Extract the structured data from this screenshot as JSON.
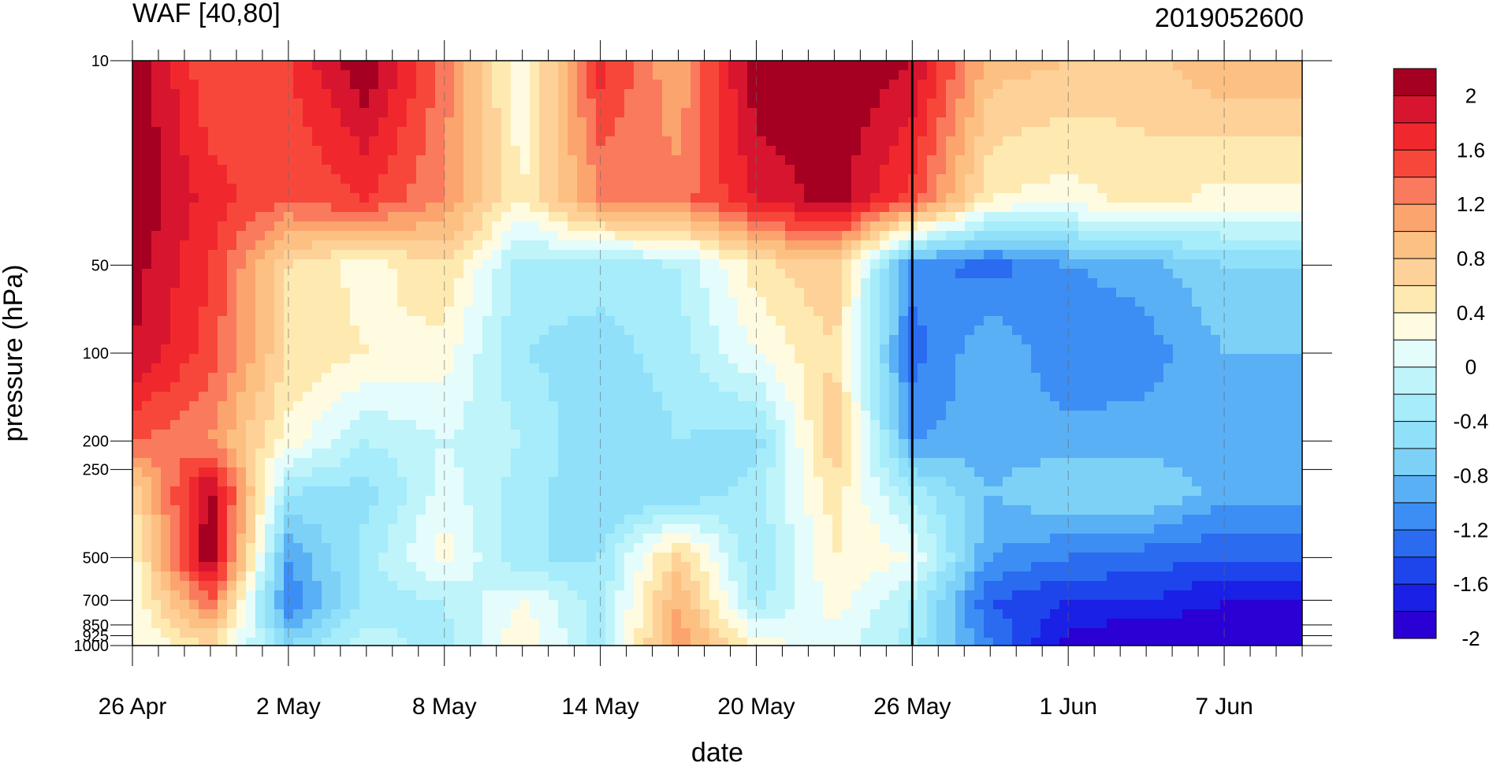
{
  "chart_data": {
    "type": "heatmap",
    "title_left": "WAF [40,80]",
    "title_right": "2019052600",
    "xlabel": "date",
    "ylabel": "pressure (hPa)",
    "x_ticks": [
      "26 Apr",
      "2 May",
      "8 May",
      "14 May",
      "20 May",
      "26 May",
      "1 Jun",
      "7 Jun"
    ],
    "x_dates": [
      "2019-04-26",
      "2019-05-02",
      "2019-05-08",
      "2019-05-14",
      "2019-05-20",
      "2019-05-26",
      "2019-06-01",
      "2019-06-07"
    ],
    "xlim": [
      "2019-04-26",
      "2019-06-10"
    ],
    "y_ticks": [
      "10",
      "50",
      "100",
      "200",
      "250",
      "500",
      "700",
      "850",
      "925",
      "1000"
    ],
    "ylim": [
      1000,
      10
    ],
    "y_scale": "log",
    "marked_date": "2019-05-26",
    "colorbar": {
      "labels": [
        "2",
        "1.6",
        "1.2",
        "0.8",
        "0.4",
        "0",
        "-0.4",
        "-0.8",
        "-1.2",
        "-1.6",
        "-2"
      ],
      "levels": [
        2.2,
        2,
        1.8,
        1.6,
        1.4,
        1.2,
        1,
        0.8,
        0.6,
        0.4,
        0.2,
        0,
        -0.2,
        -0.4,
        -0.6,
        -0.8,
        -1,
        -1.2,
        -1.4,
        -1.6,
        -1.8,
        -2,
        -2.2
      ],
      "colors": [
        "#a50021",
        "#d8152f",
        "#f0282d",
        "#f7473b",
        "#fa7a5d",
        "#fca46e",
        "#fdc083",
        "#fdd198",
        "#feeab0",
        "#fffbe0",
        "#e5fcfc",
        "#bff4fa",
        "#a6ecfa",
        "#90e0fa",
        "#7dd1f7",
        "#5ab0f5",
        "#3c8ef4",
        "#2a6bf0",
        "#1e45ec",
        "#1a20e6",
        "#2a00d4"
      ]
    },
    "series": [
      {
        "name": "",
        "pressure": 10,
        "values": [
          2.2,
          1.4,
          1.6,
          2.2,
          1.3,
          0.2,
          1.7,
          1.0,
          2.2,
          2.2,
          2.0,
          0.9,
          0.8,
          0.7,
          1.0
        ]
      },
      {
        "name": "",
        "pressure": 30,
        "values": [
          2.2,
          1.7,
          1.4,
          1.6,
          1.2,
          0.4,
          1.2,
          1.3,
          1.8,
          2.1,
          1.5,
          0.4,
          0.3,
          0.5,
          0.3
        ]
      },
      {
        "name": "",
        "pressure": 50,
        "values": [
          2.1,
          1.6,
          0.6,
          0.3,
          0.6,
          -0.3,
          -0.3,
          -0.2,
          0.5,
          0.8,
          -1.1,
          -1.3,
          -1.0,
          -0.9,
          -0.6
        ]
      },
      {
        "name": "",
        "pressure": 100,
        "values": [
          2.0,
          1.5,
          0.6,
          0.4,
          0.3,
          -0.4,
          -0.5,
          -0.3,
          0.2,
          0.6,
          -1.3,
          -0.8,
          -1.2,
          -1.1,
          -0.8
        ]
      },
      {
        "name": "",
        "pressure": 200,
        "values": [
          1.4,
          1.2,
          0.3,
          -0.2,
          0.0,
          -0.2,
          -0.6,
          -0.4,
          -0.5,
          0.8,
          -1.0,
          -0.9,
          -0.9,
          -0.9,
          -0.9
        ]
      },
      {
        "name": "",
        "pressure": 300,
        "values": [
          0.6,
          2.1,
          -0.4,
          -0.5,
          0.1,
          -0.3,
          -0.6,
          -0.6,
          -0.3,
          0.5,
          -0.3,
          -0.8,
          -0.6,
          -0.6,
          -0.9
        ]
      },
      {
        "name": "",
        "pressure": 500,
        "values": [
          0.3,
          2.2,
          -1.0,
          -0.3,
          0.3,
          -0.4,
          -0.4,
          0.7,
          -0.4,
          0.4,
          0.2,
          -1.0,
          -1.2,
          -1.3,
          -1.4
        ]
      },
      {
        "name": "",
        "pressure": 700,
        "values": [
          0.2,
          1.4,
          -1.2,
          -0.3,
          -0.2,
          0.2,
          -0.3,
          1.0,
          -0.3,
          0.3,
          -0.2,
          -1.4,
          -1.6,
          -1.6,
          -1.8
        ]
      },
      {
        "name": "",
        "pressure": 1000,
        "values": [
          0.2,
          0.6,
          -0.6,
          -0.1,
          -0.3,
          0.4,
          -0.3,
          1.2,
          0.3,
          0.1,
          -0.3,
          -1.2,
          -1.9,
          -2.1,
          -2.0
        ]
      }
    ],
    "x": [
      "2019-04-26",
      "2019-04-29",
      "2019-05-02",
      "2019-05-05",
      "2019-05-08",
      "2019-05-11",
      "2019-05-14",
      "2019-05-17",
      "2019-05-20",
      "2019-05-23",
      "2019-05-26",
      "2019-05-29",
      "2019-06-01",
      "2019-06-04",
      "2019-06-07"
    ]
  }
}
